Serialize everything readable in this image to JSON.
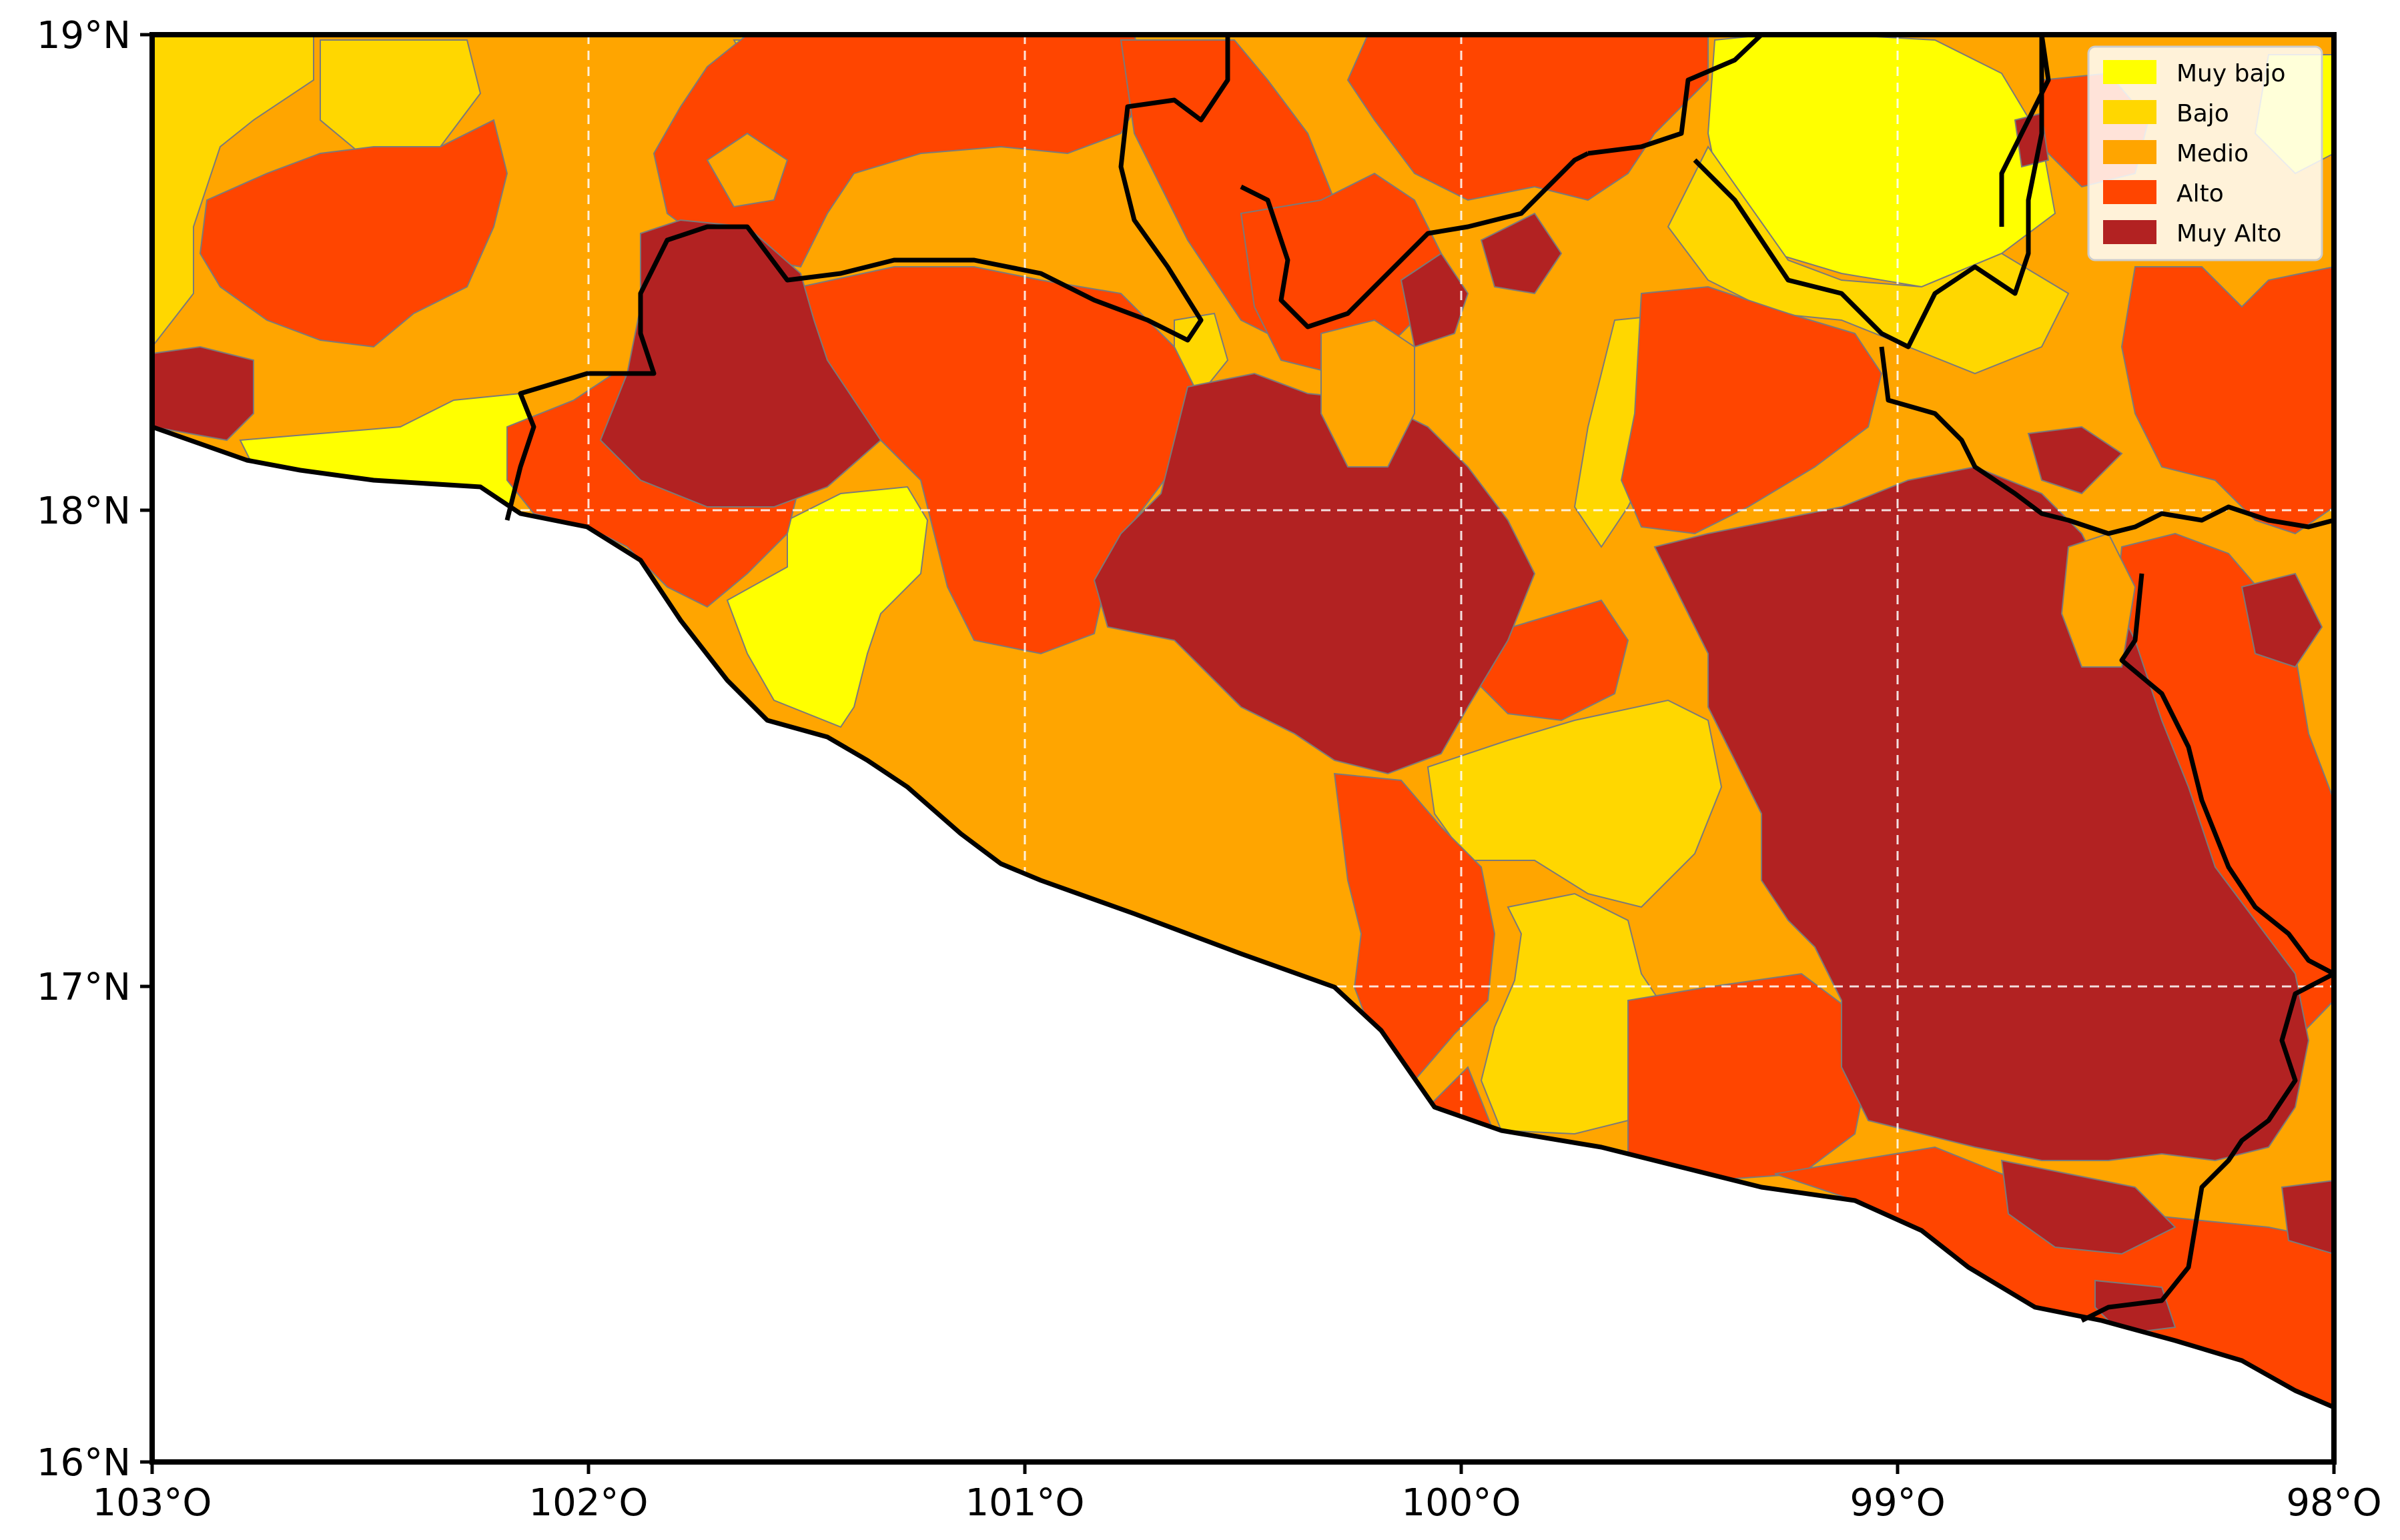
{
  "map": {
    "x_ticks": [
      "103°O",
      "102°O",
      "101°O",
      "100°O",
      "99°O",
      "98°O"
    ],
    "y_ticks": [
      "19°N",
      "18°N",
      "17°N",
      "16°N"
    ],
    "lon_range": [
      -103,
      -98
    ],
    "lat_range": [
      16,
      19
    ],
    "grid": true,
    "legend_position": "top-right"
  },
  "legend": {
    "items": [
      {
        "label": "Muy bajo",
        "color": "#FFFF00"
      },
      {
        "label": "Bajo",
        "color": "#FFD700"
      },
      {
        "label": "Medio",
        "color": "#FFA500"
      },
      {
        "label": "Alto",
        "color": "#FF4500"
      },
      {
        "label": "Muy Alto",
        "color": "#B22222"
      }
    ]
  }
}
